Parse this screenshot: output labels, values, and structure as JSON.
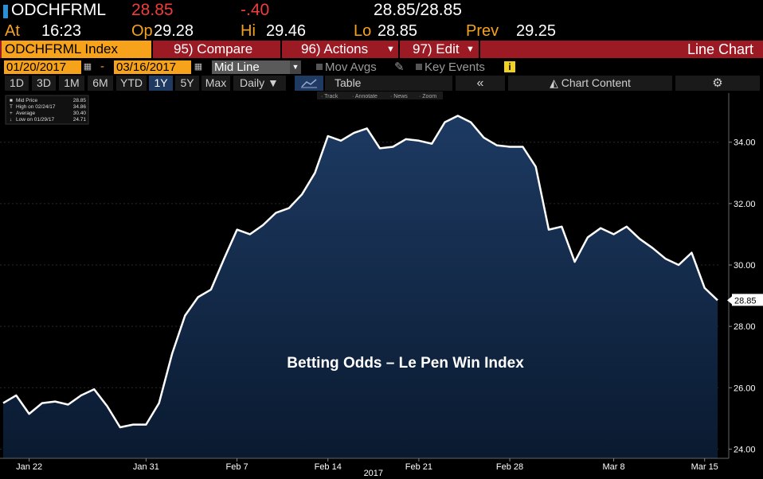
{
  "quote": {
    "ticker": "ODCHFRML",
    "last": "28.85",
    "change": "-.40",
    "bid_ask": "28.85/28.85",
    "at_label": "At",
    "time": "16:23",
    "op_label": "Op",
    "open": "29.28",
    "hi_label": "Hi",
    "high": "29.46",
    "lo_label": "Lo",
    "low": "28.85",
    "prev_label": "Prev",
    "prev": "29.25"
  },
  "menu": {
    "security": "ODCHFRML Index",
    "compare": "95) Compare",
    "actions": "96) Actions",
    "edit": "97) Edit",
    "chart_type": "Line Chart",
    "dropdown_icon": "caret-down-icon"
  },
  "range": {
    "start": "01/20/2017",
    "dash": "-",
    "end": "03/16/2017",
    "mode": "Mid Line",
    "mov_avgs": "Mov Avgs",
    "key_events": "Key Events",
    "info": "i"
  },
  "periods": {
    "items": [
      "1D",
      "3D",
      "1M",
      "6M",
      "YTD",
      "1Y",
      "5Y",
      "Max"
    ],
    "active": "1Y",
    "frequency": "Daily",
    "table": "Table",
    "collapse": "«",
    "chart_content": "Chart Content"
  },
  "toolbar": {
    "items": [
      "Track",
      "Annotate",
      "News",
      "Zoom"
    ]
  },
  "legend": {
    "rows": [
      {
        "label": "Mid Price",
        "value": "28.85"
      },
      {
        "label": "High on 02/24/17",
        "value": "34.86"
      },
      {
        "label": "Average",
        "value": "30.40"
      },
      {
        "label": "Low on 01/29/17",
        "value": "24.71"
      }
    ]
  },
  "annotation": "Betting Odds – Le Pen Win Index",
  "colors": {
    "amber": "#f7a21b",
    "red": "#f23b3b",
    "menu_red": "#9b1a24",
    "active_blue": "#1f3b63",
    "area_top": "#1d3a62",
    "area_bottom": "#0a1a30"
  },
  "chart_data": {
    "type": "area",
    "x": [
      "2017-01-20",
      "2017-01-21",
      "2017-01-22",
      "2017-01-23",
      "2017-01-24",
      "2017-01-25",
      "2017-01-26",
      "2017-01-27",
      "2017-01-28",
      "2017-01-29",
      "2017-01-30",
      "2017-01-31",
      "2017-02-01",
      "2017-02-02",
      "2017-02-03",
      "2017-02-04",
      "2017-02-05",
      "2017-02-06",
      "2017-02-07",
      "2017-02-08",
      "2017-02-09",
      "2017-02-10",
      "2017-02-11",
      "2017-02-12",
      "2017-02-13",
      "2017-02-14",
      "2017-02-15",
      "2017-02-16",
      "2017-02-17",
      "2017-02-18",
      "2017-02-19",
      "2017-02-20",
      "2017-02-21",
      "2017-02-22",
      "2017-02-23",
      "2017-02-24",
      "2017-02-25",
      "2017-02-26",
      "2017-02-27",
      "2017-02-28",
      "2017-03-01",
      "2017-03-02",
      "2017-03-03",
      "2017-03-04",
      "2017-03-05",
      "2017-03-06",
      "2017-03-07",
      "2017-03-08",
      "2017-03-09",
      "2017-03-10",
      "2017-03-11",
      "2017-03-12",
      "2017-03-13",
      "2017-03-14",
      "2017-03-15",
      "2017-03-16"
    ],
    "series": [
      {
        "values": [
          25.5,
          25.75,
          25.15,
          25.5,
          25.55,
          25.45,
          25.75,
          25.95,
          25.4,
          24.71,
          24.8,
          24.8,
          25.5,
          27.1,
          28.35,
          28.95,
          29.2,
          30.2,
          31.15,
          31.0,
          31.3,
          31.7,
          31.85,
          32.3,
          33.0,
          34.2,
          34.05,
          34.3,
          34.45,
          33.8,
          33.85,
          34.1,
          34.05,
          33.95,
          34.65,
          34.86,
          34.65,
          34.15,
          33.9,
          33.85,
          33.85,
          33.2,
          31.15,
          31.25,
          30.1,
          30.9,
          31.2,
          31.0,
          31.25,
          30.85,
          30.55,
          30.2,
          30.0,
          30.4,
          29.25,
          28.85
        ]
      }
    ],
    "ylim": [
      23.7,
      35.6
    ],
    "yticks": [
      "24.00",
      "26.00",
      "28.00",
      "30.00",
      "32.00",
      "34.00"
    ],
    "xtick_labels": [
      "Jan 22",
      "Jan 31",
      "Feb 7",
      "Feb 14",
      "Feb 21",
      "Feb 28",
      "Mar 8",
      "Mar 15"
    ],
    "xtick_dates": [
      "2017-01-22",
      "2017-01-31",
      "2017-02-07",
      "2017-02-14",
      "2017-02-21",
      "2017-02-28",
      "2017-03-08",
      "2017-03-15"
    ],
    "year_label": "2017",
    "last_value_label": "28.85",
    "grid": true
  }
}
